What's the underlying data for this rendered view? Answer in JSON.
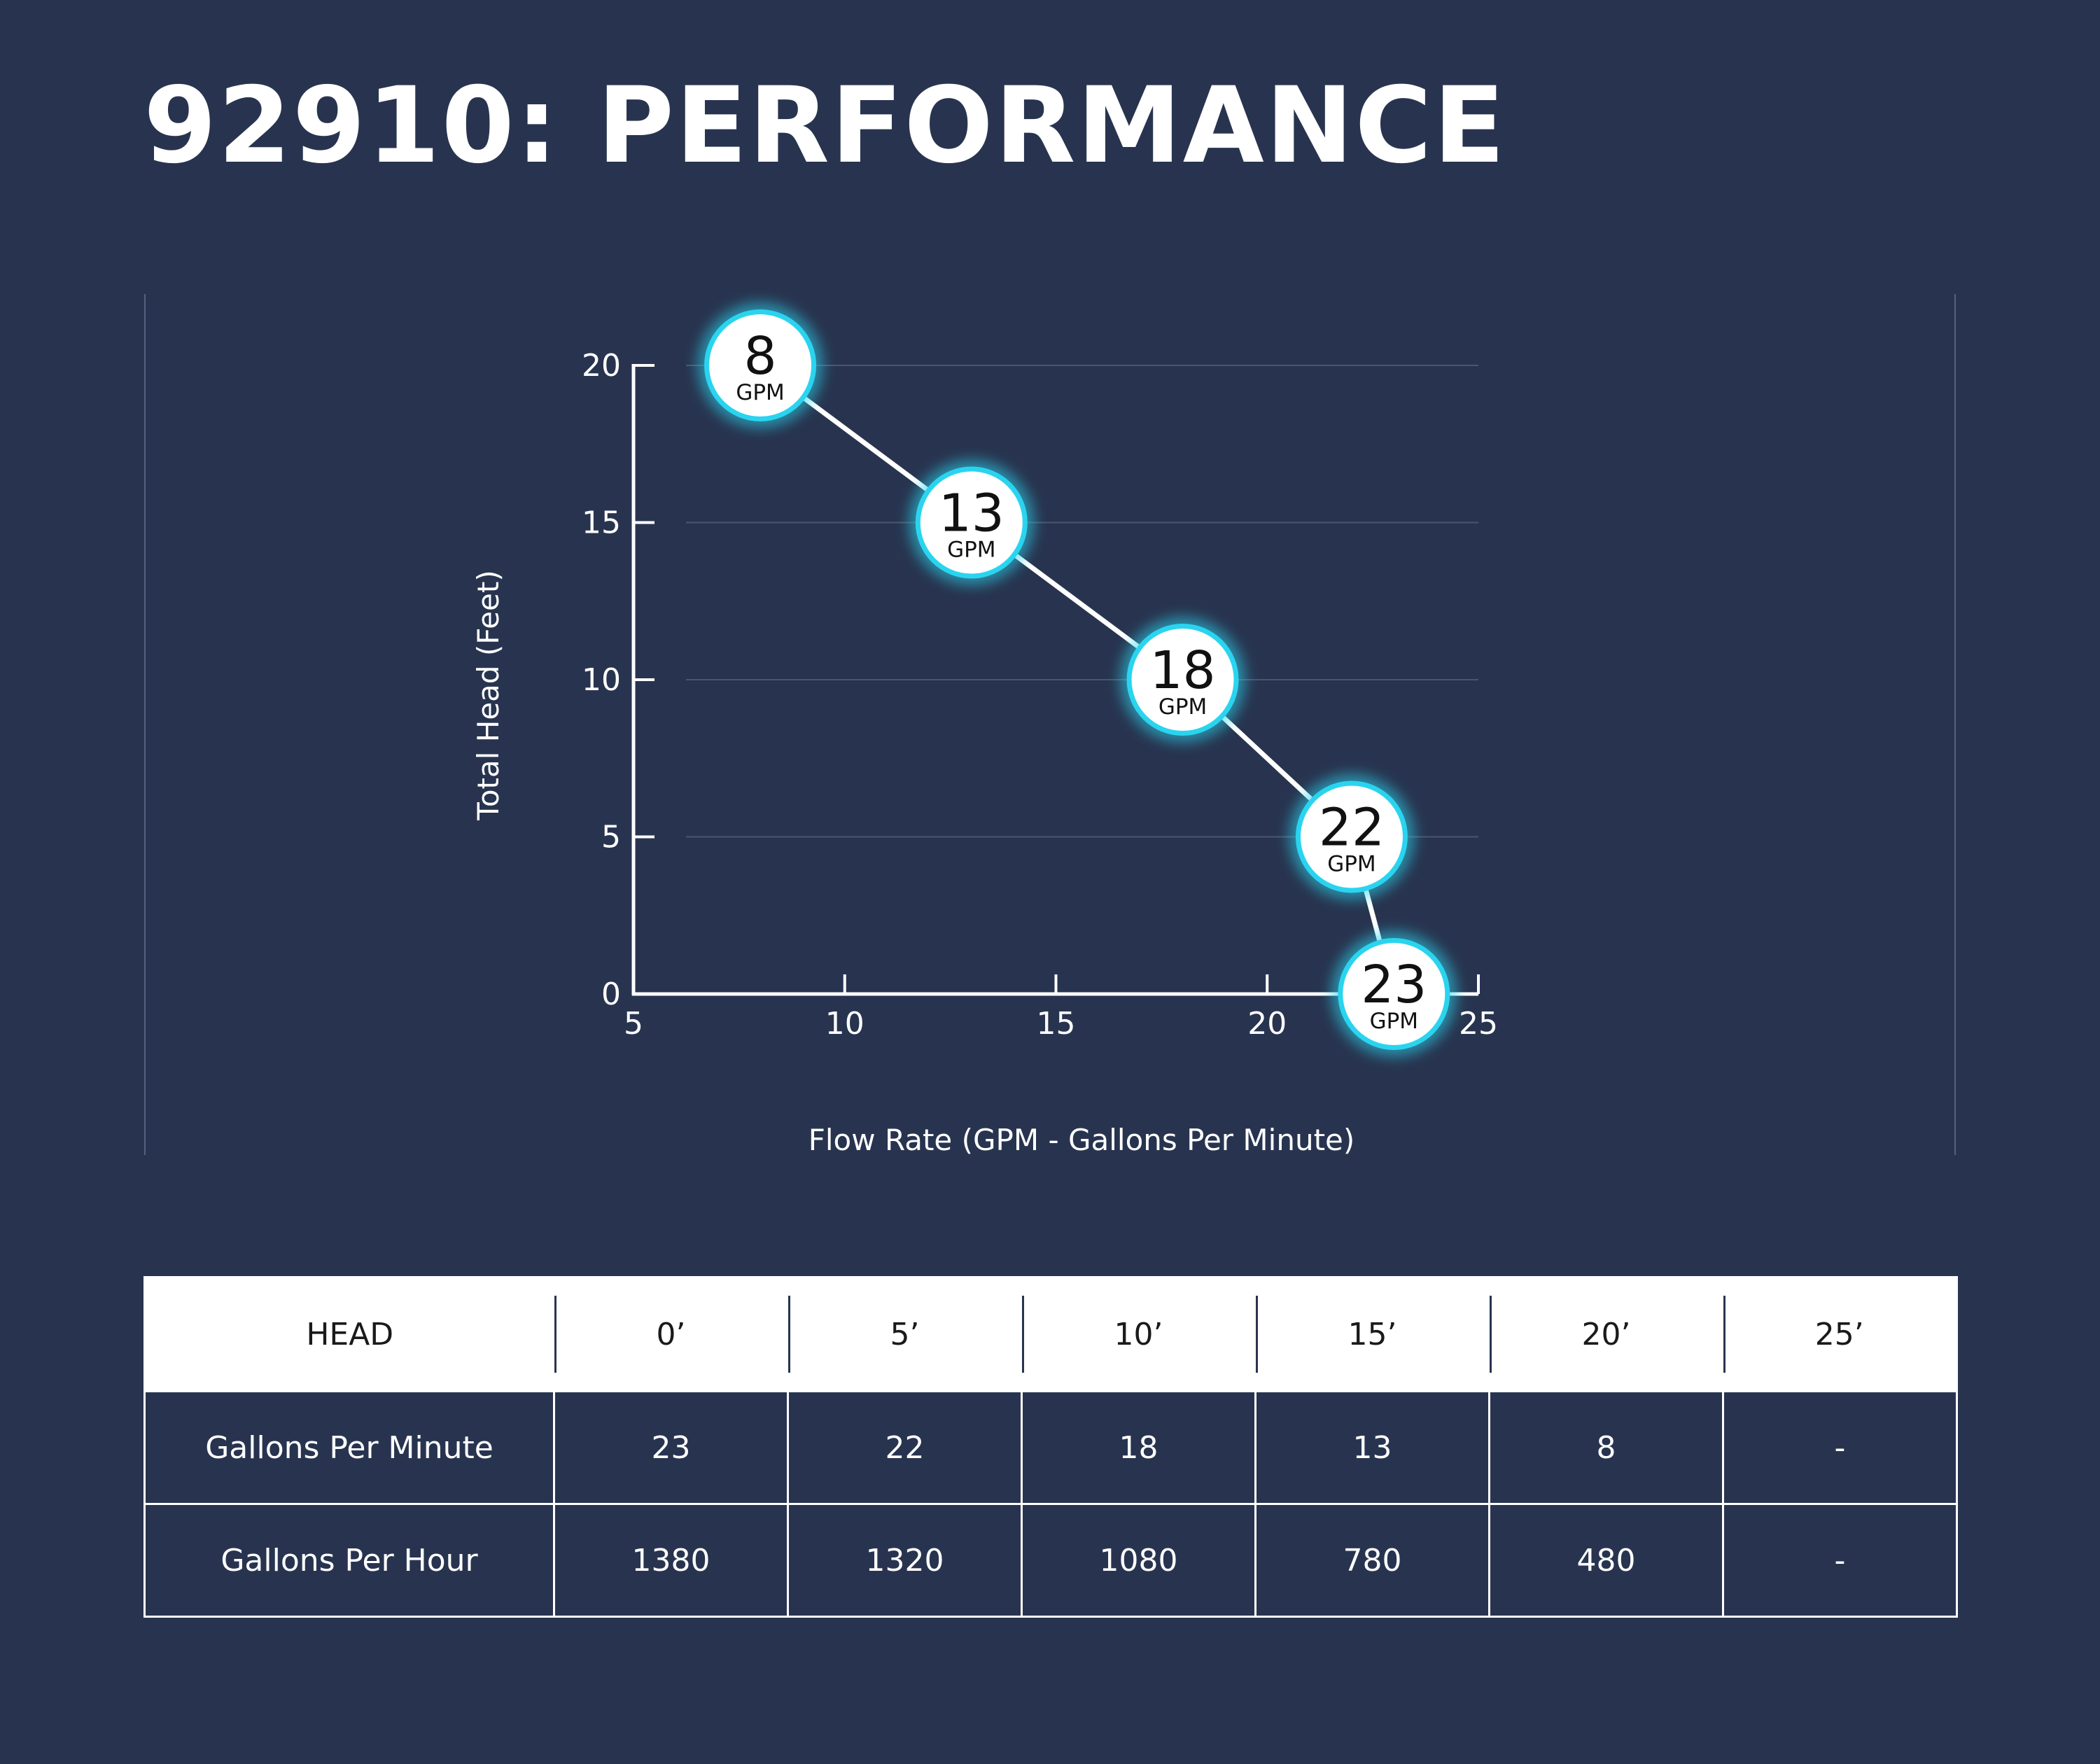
{
  "title": "92910: PERFORMANCE",
  "colors": {
    "background": "#28344f",
    "marker_glow": "#2ad4ef",
    "line": "#ffffff",
    "table_header_bg": "#ffffff"
  },
  "chart_data": {
    "type": "line",
    "xlabel": "Flow Rate (GPM - Gallons Per Minute)",
    "ylabel": "Total Head (Feet)",
    "xlim": [
      5,
      25
    ],
    "ylim": [
      0,
      20
    ],
    "x_ticks": [
      5,
      10,
      15,
      20,
      25
    ],
    "y_ticks": [
      0,
      5,
      10,
      15,
      20
    ],
    "grid": "horizontal",
    "points": [
      {
        "x": 8,
        "y": 20,
        "label": "8",
        "unit": "GPM"
      },
      {
        "x": 13,
        "y": 15,
        "label": "13",
        "unit": "GPM"
      },
      {
        "x": 18,
        "y": 10,
        "label": "18",
        "unit": "GPM"
      },
      {
        "x": 22,
        "y": 5,
        "label": "22",
        "unit": "GPM"
      },
      {
        "x": 23,
        "y": 0,
        "label": "23",
        "unit": "GPM"
      }
    ]
  },
  "table": {
    "header": [
      "HEAD",
      "0’",
      "5’",
      "10’",
      "15’",
      "20’",
      "25’"
    ],
    "rows": [
      {
        "label": "Gallons Per Minute",
        "values": [
          "23",
          "22",
          "18",
          "13",
          "8",
          "-"
        ]
      },
      {
        "label": "Gallons Per Hour",
        "values": [
          "1380",
          "1320",
          "1080",
          "780",
          "480",
          "-"
        ]
      }
    ]
  }
}
